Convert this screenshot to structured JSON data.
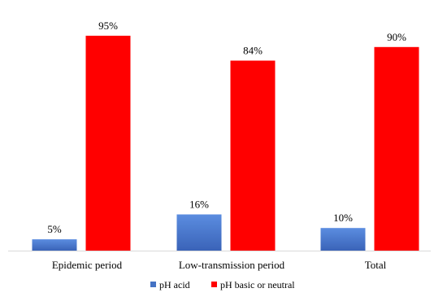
{
  "chart_data": {
    "type": "bar",
    "title": "",
    "xlabel": "",
    "ylabel": "",
    "categories": [
      "Epidemic period",
      "Low-transmission period",
      "Total"
    ],
    "series": [
      {
        "name": "pH acid",
        "values": [
          5,
          16,
          10
        ],
        "labels": [
          "5%",
          "16%",
          "10%"
        ],
        "color": "#4472c4"
      },
      {
        "name": "pH basic or neutral",
        "values": [
          95,
          84,
          90
        ],
        "labels": [
          "95%",
          "84%",
          "90%"
        ],
        "color": "#ff0000"
      }
    ],
    "ylim": [
      0,
      100
    ],
    "unit": "%",
    "grid": false,
    "legend_position": "bottom"
  }
}
